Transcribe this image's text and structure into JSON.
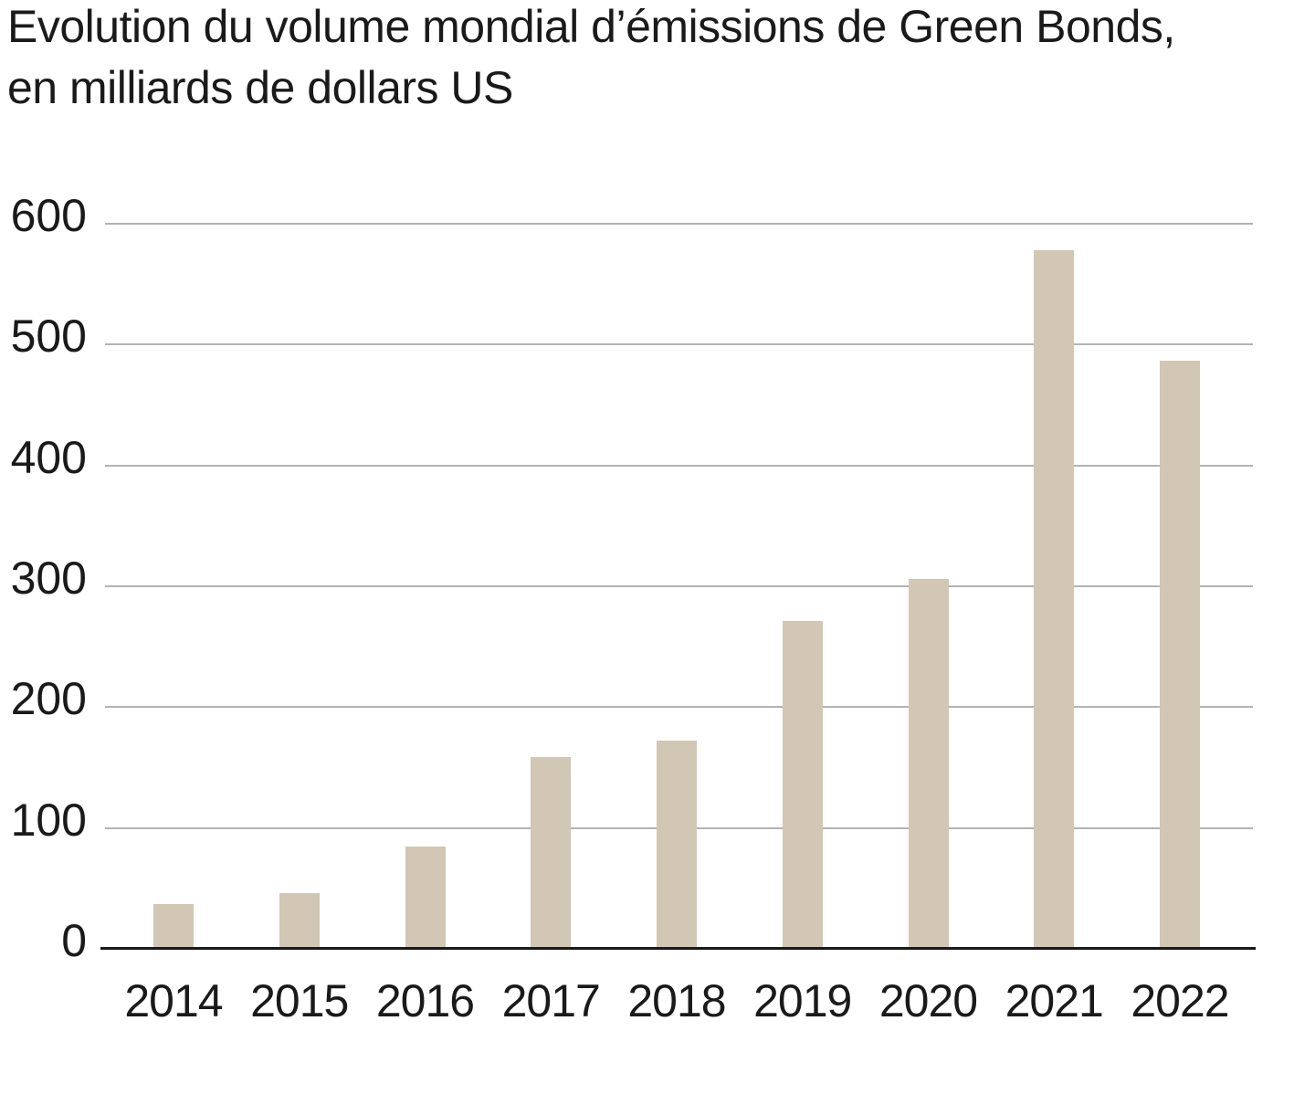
{
  "chart_data": {
    "type": "bar",
    "title": "Evolution du volume mondial d’émissions de Green Bonds, en milliards de dollars US",
    "categories": [
      "2014",
      "2015",
      "2016",
      "2017",
      "2018",
      "2019",
      "2020",
      "2021",
      "2022"
    ],
    "values": [
      37,
      46,
      85,
      159,
      172,
      271,
      306,
      578,
      487
    ],
    "xlabel": "",
    "ylabel": "milliards de dollars US",
    "ylim": [
      0,
      600
    ],
    "yticks": [
      0,
      100,
      200,
      300,
      400,
      500,
      600
    ],
    "grid": true,
    "legend": "none",
    "colors": {
      "bar": "#d2c6b4",
      "gridline": "#b3b3b3",
      "axis": "#1a1a1a",
      "text": "#1a1a1a",
      "background": "#ffffff"
    }
  }
}
